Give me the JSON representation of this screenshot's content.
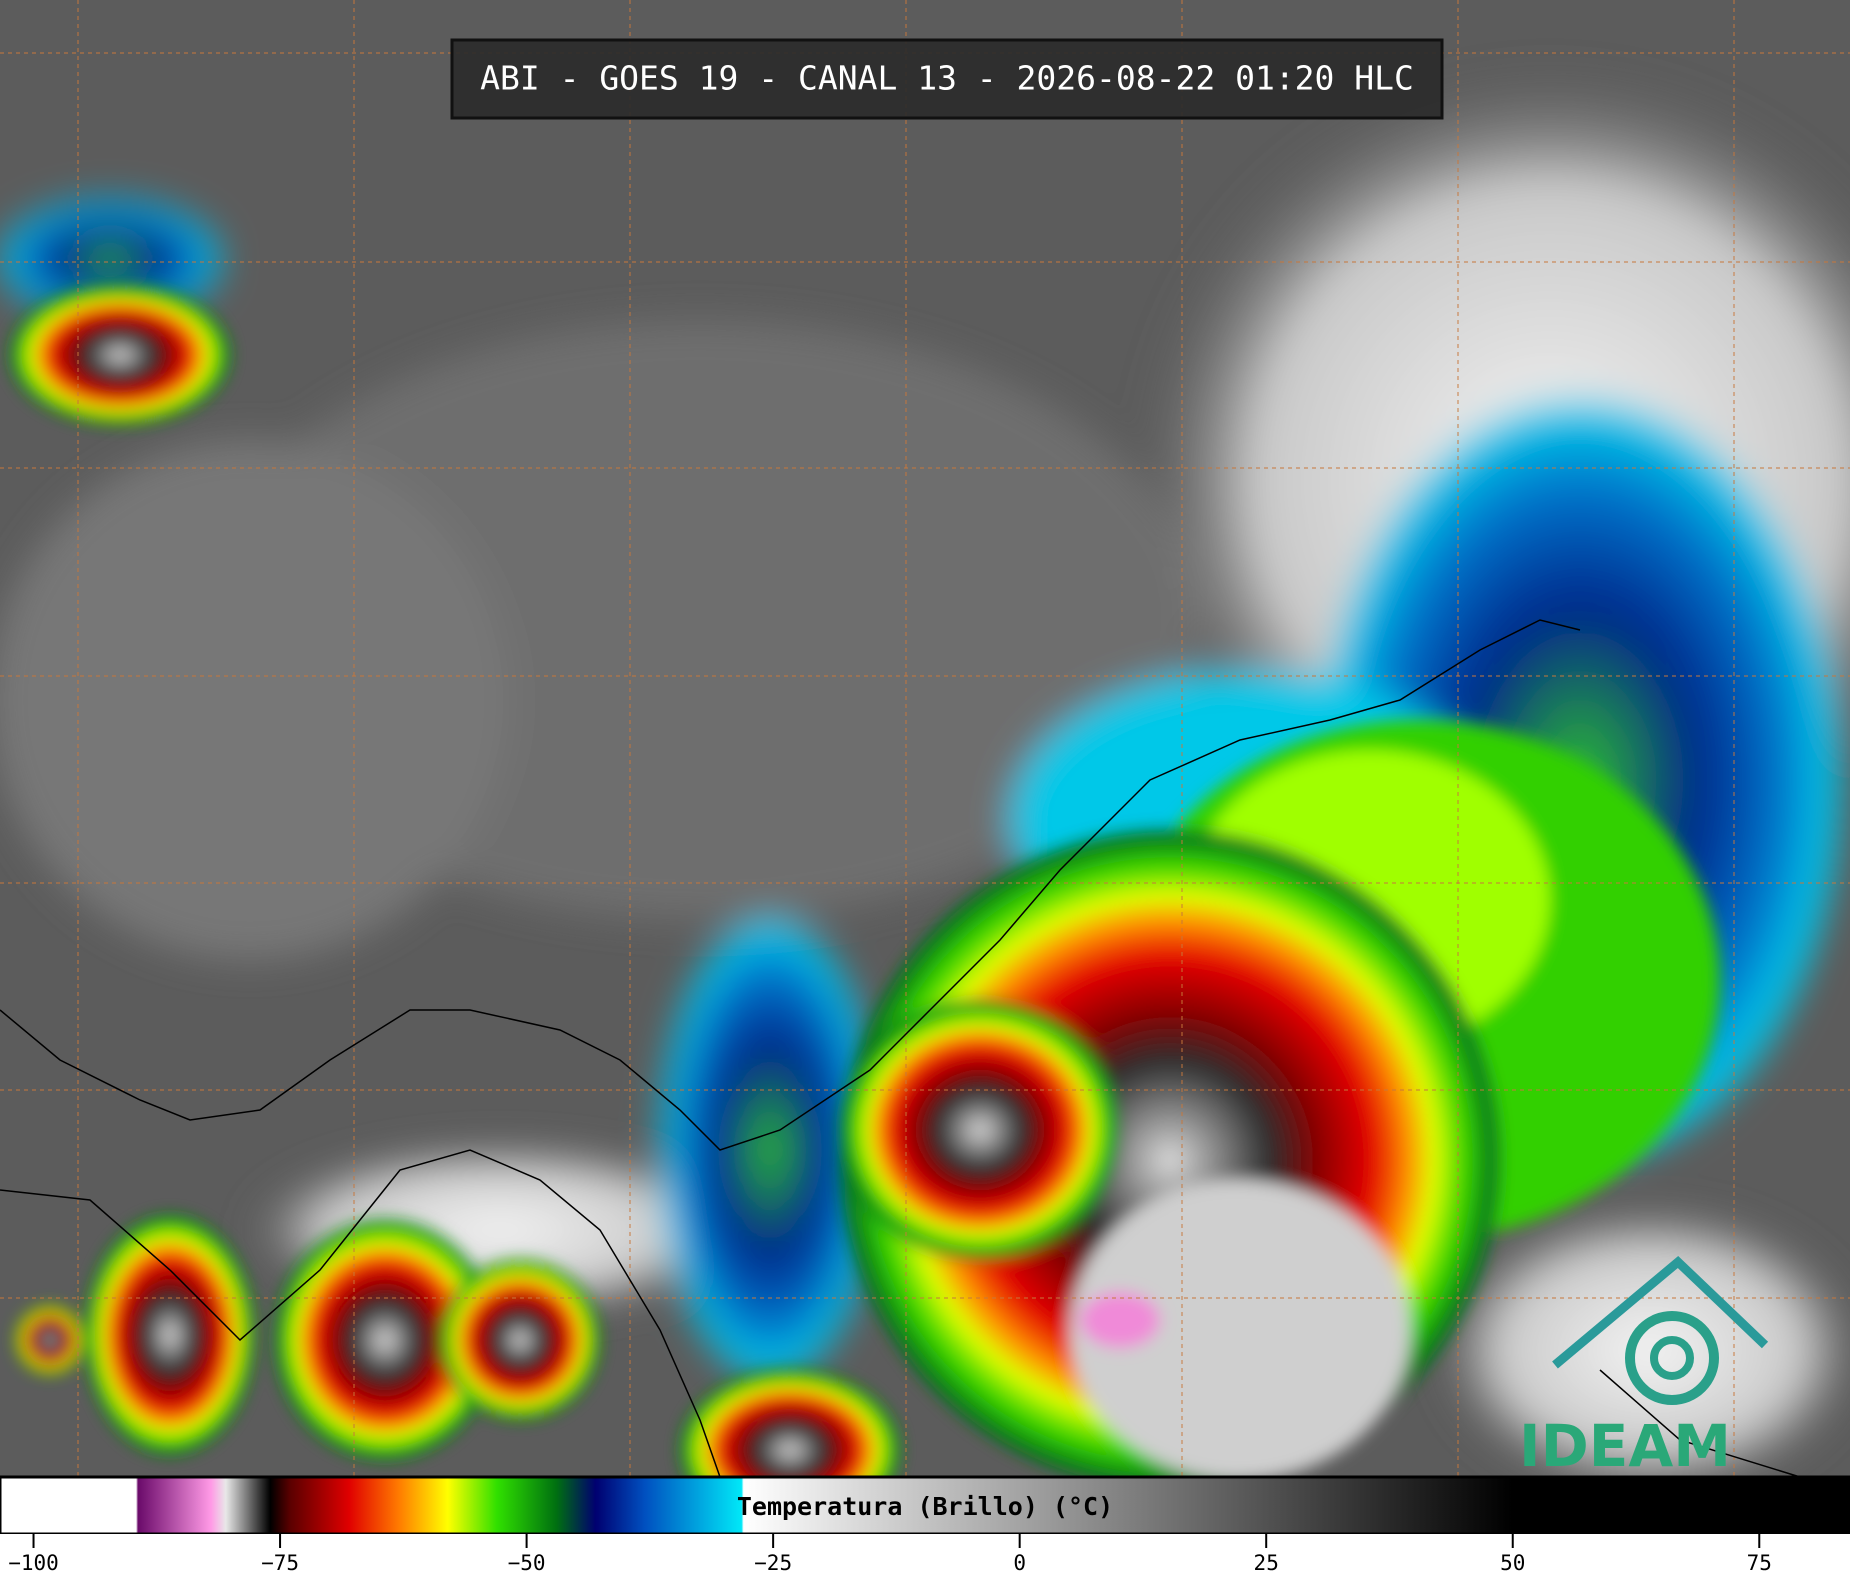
{
  "header": {
    "title": "ABI - GOES 19 - CANAL 13 - 2026-08-22 01:20 HLC"
  },
  "logo": {
    "text": "IDEAM"
  },
  "chart_data": {
    "type": "colorbar",
    "x_label": "Temperatura (Brillo) (°C)",
    "xlim": [
      -103.4,
      84.2
    ],
    "xticks": [
      {
        "value": -100,
        "label": "−100"
      },
      {
        "value": -75,
        "label": "−75"
      },
      {
        "value": -50,
        "label": "−50"
      },
      {
        "value": -25,
        "label": "−25"
      },
      0,
      25,
      50,
      75
    ],
    "stops": [
      {
        "value": -103.4,
        "color": "#ffffff"
      },
      {
        "value": -89.6,
        "color": "#ffffff"
      },
      {
        "value": -89.4,
        "color": "#6a0a6a"
      },
      {
        "value": -82,
        "color": "#ff9ae6"
      },
      {
        "value": -80.5,
        "color": "#e8e8e8"
      },
      {
        "value": -76,
        "color": "#000000"
      },
      {
        "value": -74,
        "color": "#5a0000"
      },
      {
        "value": -68,
        "color": "#e00000"
      },
      {
        "value": -63,
        "color": "#ff7a00"
      },
      {
        "value": -58,
        "color": "#ffff00"
      },
      {
        "value": -53,
        "color": "#30e000"
      },
      {
        "value": -47,
        "color": "#007010"
      },
      {
        "value": -43,
        "color": "#000070"
      },
      {
        "value": -38,
        "color": "#0050c0"
      },
      {
        "value": -28.2,
        "color": "#00e8f8"
      },
      {
        "value": -28,
        "color": "#ffffff"
      },
      {
        "value": 50,
        "color": "#000000"
      },
      {
        "value": 84.2,
        "color": "#000000"
      }
    ]
  }
}
